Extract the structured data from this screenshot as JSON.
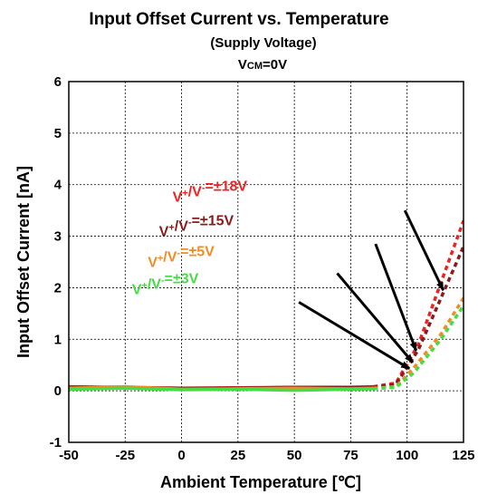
{
  "chart_data": {
    "type": "line",
    "title": "Input Offset Current vs. Temperature",
    "subtitle": "(Supply Voltage)",
    "condition": {
      "main": "V",
      "sub": "CM",
      "rest": "=0V"
    },
    "xlabel": "Ambient Temperature [℃]",
    "ylabel": "Input Offset Current [nA]",
    "xlim": [
      -50,
      125
    ],
    "ylim": [
      -1,
      6
    ],
    "xticks": [
      -50,
      -25,
      0,
      25,
      50,
      75,
      100,
      125
    ],
    "yticks": [
      -1,
      0,
      1,
      2,
      3,
      4,
      5,
      6
    ],
    "grid": true,
    "series": [
      {
        "label": {
          "a": "V",
          "b": "+",
          "c": "/V",
          "d": "-",
          "e": "=±18V"
        },
        "color": "#ee2222",
        "solid": {
          "x": [
            -50,
            -25,
            0,
            25,
            50,
            75,
            85
          ],
          "y": [
            0.08,
            0.07,
            0.05,
            0.06,
            0.07,
            0.07,
            0.08
          ]
        },
        "dashed": {
          "x": [
            85,
            95,
            105,
            115,
            125
          ],
          "y": [
            0.08,
            0.15,
            0.9,
            2.1,
            3.3
          ]
        }
      },
      {
        "label": {
          "a": "V",
          "b": "+",
          "c": "/V",
          "d": "-",
          "e": "=±15V"
        },
        "color": "#8b1a1a",
        "solid": {
          "x": [
            -50,
            -25,
            0,
            25,
            50,
            75,
            85
          ],
          "y": [
            0.07,
            0.06,
            0.05,
            0.05,
            0.07,
            0.07,
            0.07
          ]
        },
        "dashed": {
          "x": [
            85,
            95,
            105,
            115,
            125
          ],
          "y": [
            0.07,
            0.12,
            0.8,
            1.8,
            2.8
          ]
        }
      },
      {
        "label": {
          "a": "V",
          "b": "+",
          "c": "/V",
          "d": "-",
          "e": "=±5V"
        },
        "color": "#f08c28",
        "solid": {
          "x": [
            -50,
            -25,
            0,
            25,
            50,
            75,
            85
          ],
          "y": [
            0.05,
            0.08,
            0.03,
            0.04,
            0.05,
            0.04,
            0.05
          ]
        },
        "dashed": {
          "x": [
            85,
            95,
            103,
            115,
            125
          ],
          "y": [
            0.05,
            0.08,
            0.45,
            1.1,
            1.8
          ]
        }
      },
      {
        "label": {
          "a": "V",
          "b": "+",
          "c": "/V",
          "d": "-",
          "e": "=±3V"
        },
        "color": "#44dd44",
        "solid": {
          "x": [
            -50,
            -25,
            0,
            25,
            50,
            75,
            85
          ],
          "y": [
            0.03,
            0.05,
            0.02,
            0.03,
            0.01,
            0.03,
            0.04
          ]
        },
        "dashed": {
          "x": [
            85,
            95,
            103,
            115,
            125
          ],
          "y": [
            0.04,
            0.07,
            0.35,
            1.0,
            1.65
          ]
        }
      }
    ],
    "annotations": [
      {
        "series": 0,
        "text_at": [
          -4,
          3.67
        ],
        "arrow_from": [
          99,
          3.5
        ],
        "arrow_to": [
          116,
          1.95
        ]
      },
      {
        "series": 1,
        "text_at": [
          -10,
          3.0
        ],
        "arrow_from": [
          86,
          2.85
        ],
        "arrow_to": [
          104,
          0.78
        ]
      },
      {
        "series": 2,
        "text_at": [
          -15,
          2.4
        ],
        "arrow_from": [
          69,
          2.28
        ],
        "arrow_to": [
          102.5,
          0.55
        ]
      },
      {
        "series": 3,
        "text_at": [
          -22,
          1.88
        ],
        "arrow_from": [
          52,
          1.72
        ],
        "arrow_to": [
          101,
          0.43
        ]
      }
    ]
  }
}
